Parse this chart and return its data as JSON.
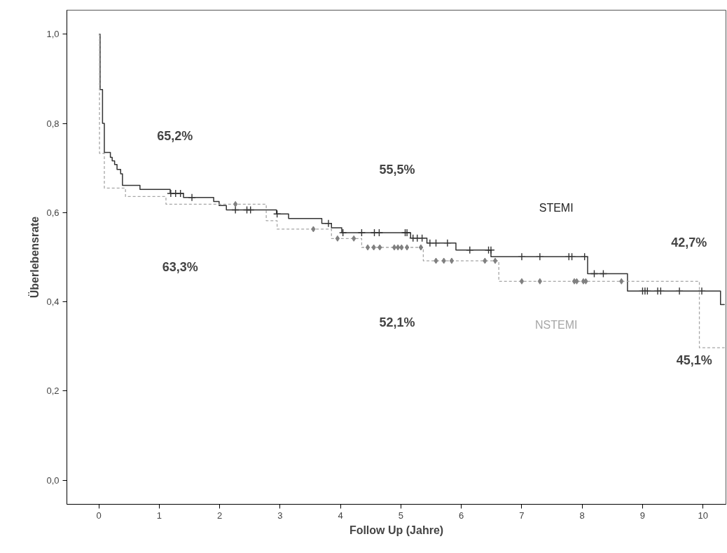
{
  "chart_data": {
    "type": "step",
    "xlabel": "Follow Up (Jahre)",
    "ylabel": "Überlebensrate",
    "xlim": [
      -0.53,
      10.38
    ],
    "ylim": [
      -0.054,
      1.054
    ],
    "xticks": [
      0,
      1,
      2,
      3,
      4,
      5,
      6,
      7,
      8,
      9,
      10
    ],
    "yticks": [
      {
        "value": 0,
        "label": "0,0"
      },
      {
        "value": 0.2,
        "label": "0,2"
      },
      {
        "value": 0.4,
        "label": "0,4"
      },
      {
        "value": 0.6,
        "label": "0,6"
      },
      {
        "value": 0.8,
        "label": "0,8"
      },
      {
        "value": 1.0,
        "label": "1,0"
      }
    ],
    "grid": false,
    "legend": false,
    "series": [
      {
        "name": "STEMI",
        "color": "#333333",
        "line_style": "solid",
        "x": [
          0,
          0.02,
          0.06,
          0.09,
          0.19,
          0.22,
          0.26,
          0.3,
          0.36,
          0.39,
          0.68,
          1.18,
          1.4,
          1.9,
          1.99,
          2.11,
          2.94,
          3.14,
          3.69,
          3.85,
          4.02,
          5.16,
          5.43,
          5.91,
          6.49,
          8.09,
          8.75,
          10.29,
          10.36
        ],
        "values": [
          1.0,
          0.876,
          0.8,
          0.735,
          0.724,
          0.716,
          0.708,
          0.697,
          0.687,
          0.661,
          0.652,
          0.643,
          0.634,
          0.625,
          0.616,
          0.606,
          0.597,
          0.587,
          0.576,
          0.566,
          0.555,
          0.543,
          0.532,
          0.516,
          0.501,
          0.463,
          0.424,
          0.394,
          0.394
        ]
      },
      {
        "name": "NSTEMI",
        "color": "#a6a6a6",
        "line_style": "dashed",
        "x": [
          0,
          0.01,
          0.09,
          0.44,
          1.11,
          2.77,
          2.95,
          3.85,
          4.35,
          5.37,
          6.62,
          9.94,
          10.36
        ],
        "values": [
          1.0,
          0.733,
          0.655,
          0.636,
          0.619,
          0.582,
          0.563,
          0.542,
          0.522,
          0.492,
          0.446,
          0.297,
          0.297
        ]
      },
      {
        "type": "scatter",
        "marker": "cross",
        "color": "#333333",
        "x": [
          1.19,
          1.27,
          1.35,
          1.54,
          2.26,
          2.45,
          2.51,
          2.95,
          3.8,
          4.04,
          4.35,
          4.56,
          4.64,
          5.07,
          5.1,
          5.2,
          5.27,
          5.35,
          5.48,
          5.58,
          5.77,
          6.14,
          6.45,
          6.49,
          7.0,
          7.3,
          7.78,
          7.83,
          8.04,
          8.2,
          8.35,
          9.0,
          9.04,
          9.08,
          9.25,
          9.3,
          9.61,
          9.98
        ],
        "values": [
          0.643,
          0.643,
          0.643,
          0.634,
          0.606,
          0.606,
          0.606,
          0.597,
          0.576,
          0.555,
          0.555,
          0.555,
          0.555,
          0.555,
          0.555,
          0.543,
          0.543,
          0.543,
          0.532,
          0.532,
          0.532,
          0.516,
          0.516,
          0.516,
          0.501,
          0.501,
          0.501,
          0.501,
          0.501,
          0.463,
          0.463,
          0.424,
          0.424,
          0.424,
          0.424,
          0.424,
          0.424,
          0.424
        ]
      },
      {
        "type": "scatter",
        "marker": "diamond",
        "color": "#808080",
        "x": [
          2.26,
          3.55,
          3.95,
          4.22,
          4.45,
          4.55,
          4.65,
          4.89,
          4.95,
          5.01,
          5.1,
          5.33,
          5.58,
          5.71,
          5.84,
          6.39,
          6.56,
          7.0,
          7.3,
          7.87,
          7.91,
          8.02,
          8.06,
          8.65
        ],
        "values": [
          0.619,
          0.563,
          0.542,
          0.542,
          0.522,
          0.522,
          0.522,
          0.522,
          0.522,
          0.522,
          0.522,
          0.522,
          0.492,
          0.492,
          0.492,
          0.492,
          0.492,
          0.446,
          0.446,
          0.446,
          0.446,
          0.446,
          0.446,
          0.446
        ]
      }
    ],
    "annotations": [
      "65,2%",
      "55,5%",
      "42,7%",
      "63,3%",
      "52,1%",
      "45,1%"
    ]
  }
}
